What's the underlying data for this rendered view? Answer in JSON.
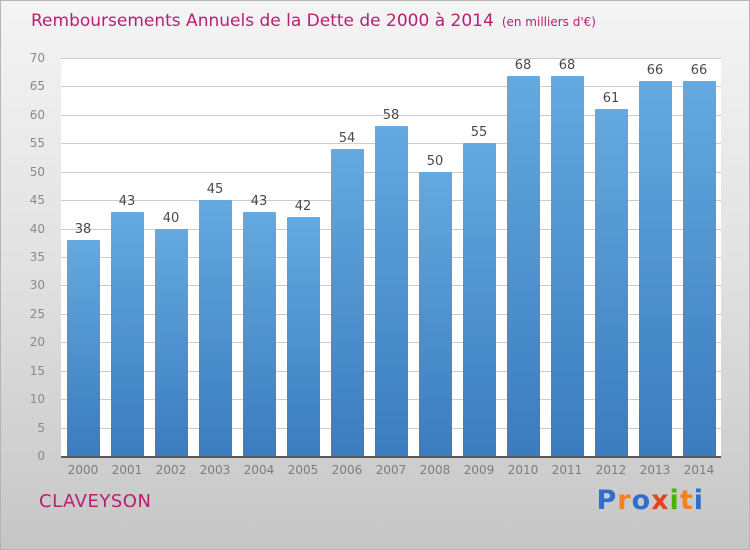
{
  "title": "Remboursements Annuels de la Dette de 2000 à 2014",
  "subtitle": "(en milliers d'€)",
  "footer": {
    "company": "CLAVEYSON"
  },
  "logo": {
    "letters": [
      {
        "ch": "P",
        "color": "#2e6fce"
      },
      {
        "ch": "r",
        "color": "#f58220"
      },
      {
        "ch": "o",
        "color": "#2e6fce"
      },
      {
        "ch": "x",
        "color": "#e8431f"
      },
      {
        "ch": "i",
        "color": "#4ab500"
      },
      {
        "ch": "t",
        "color": "#f58220"
      },
      {
        "ch": "i",
        "color": "#2e6fce"
      }
    ]
  },
  "colors": {
    "title_text": "#b81f72",
    "bar_top": "#64a9e0",
    "bar_bottom": "#3a7cbe",
    "gridline": "#cccccc",
    "axis_line": "#5a5a5a"
  },
  "chart_data": {
    "type": "bar",
    "title": "Remboursements Annuels de la Dette de 2000 à 2014 (en milliers d'€)",
    "categories": [
      "2000",
      "2001",
      "2002",
      "2003",
      "2004",
      "2005",
      "2006",
      "2007",
      "2008",
      "2009",
      "2010",
      "2011",
      "2012",
      "2013",
      "2014"
    ],
    "values": [
      38,
      43,
      40,
      45,
      43,
      42,
      54,
      58,
      50,
      55,
      68,
      68,
      61,
      66,
      66
    ],
    "xlabel": "",
    "ylabel": "",
    "ylim": [
      0,
      70
    ],
    "ytick_step": 5,
    "grid": true,
    "legend": false,
    "value_labels": true
  }
}
